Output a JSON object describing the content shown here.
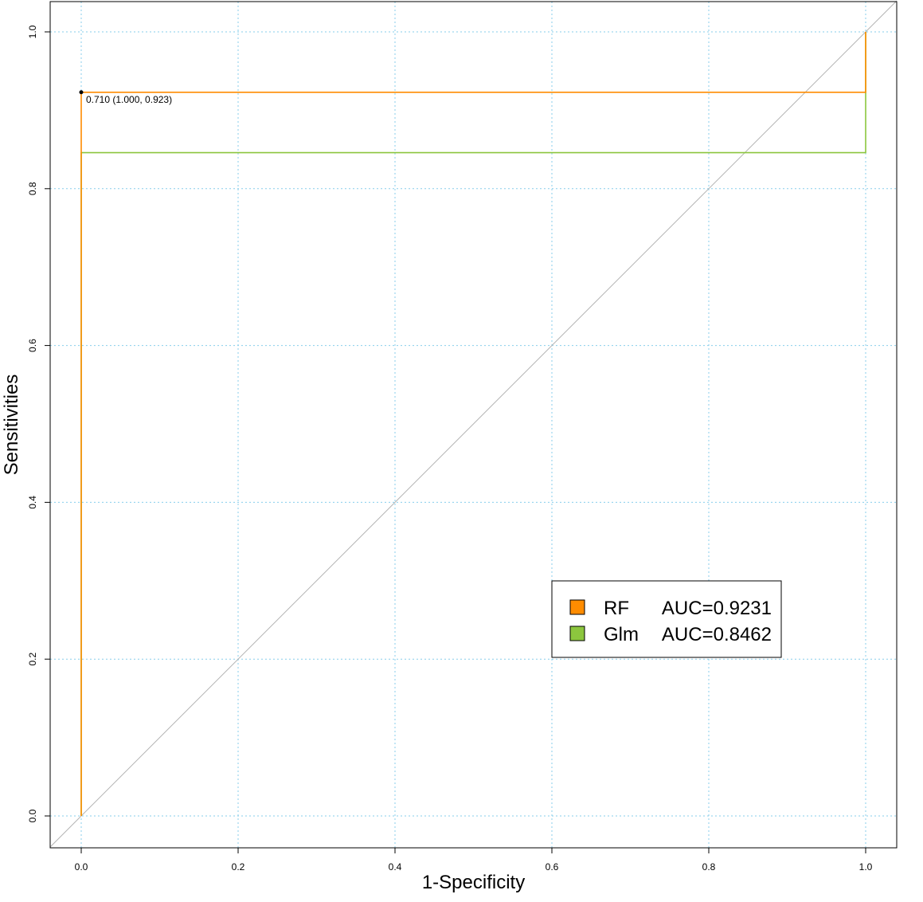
{
  "chart_data": {
    "type": "line",
    "title": "",
    "xlabel": "1-Specificity",
    "ylabel": "Sensitivities",
    "xlim": [
      -0.04,
      1.04
    ],
    "ylim": [
      -0.04,
      1.04
    ],
    "xticks": [
      0.0,
      0.2,
      0.4,
      0.6,
      0.8,
      1.0
    ],
    "xtick_labels": [
      "0.0",
      "0.2",
      "0.4",
      "0.6",
      "0.8",
      "1.0"
    ],
    "yticks": [
      0.0,
      0.2,
      0.4,
      0.6,
      0.8,
      1.0
    ],
    "ytick_labels": [
      "0.0",
      "0.2",
      "0.4",
      "0.6",
      "0.8",
      "1.0"
    ],
    "grid": true,
    "grid_color": "#87ceeb",
    "diagonal_reference": true,
    "diagonal_color": "#b3b3b3",
    "legend_position": "bottom-right",
    "series": [
      {
        "name": "RF",
        "auc_label": "AUC=0.9231",
        "color": "#ff8c00",
        "x": [
          0.0,
          0.0,
          1.0,
          1.0
        ],
        "y": [
          0.0,
          0.923,
          0.923,
          1.0
        ]
      },
      {
        "name": "Glm",
        "auc_label": "AUC=0.8462",
        "color": "#8cc63e",
        "x": [
          0.0,
          0.0,
          1.0,
          1.0
        ],
        "y": [
          0.0,
          0.846,
          0.846,
          1.0
        ]
      }
    ],
    "annotations": [
      {
        "text": "0.710 (1.000, 0.923)",
        "x": 0.0,
        "y": 0.923
      }
    ]
  }
}
